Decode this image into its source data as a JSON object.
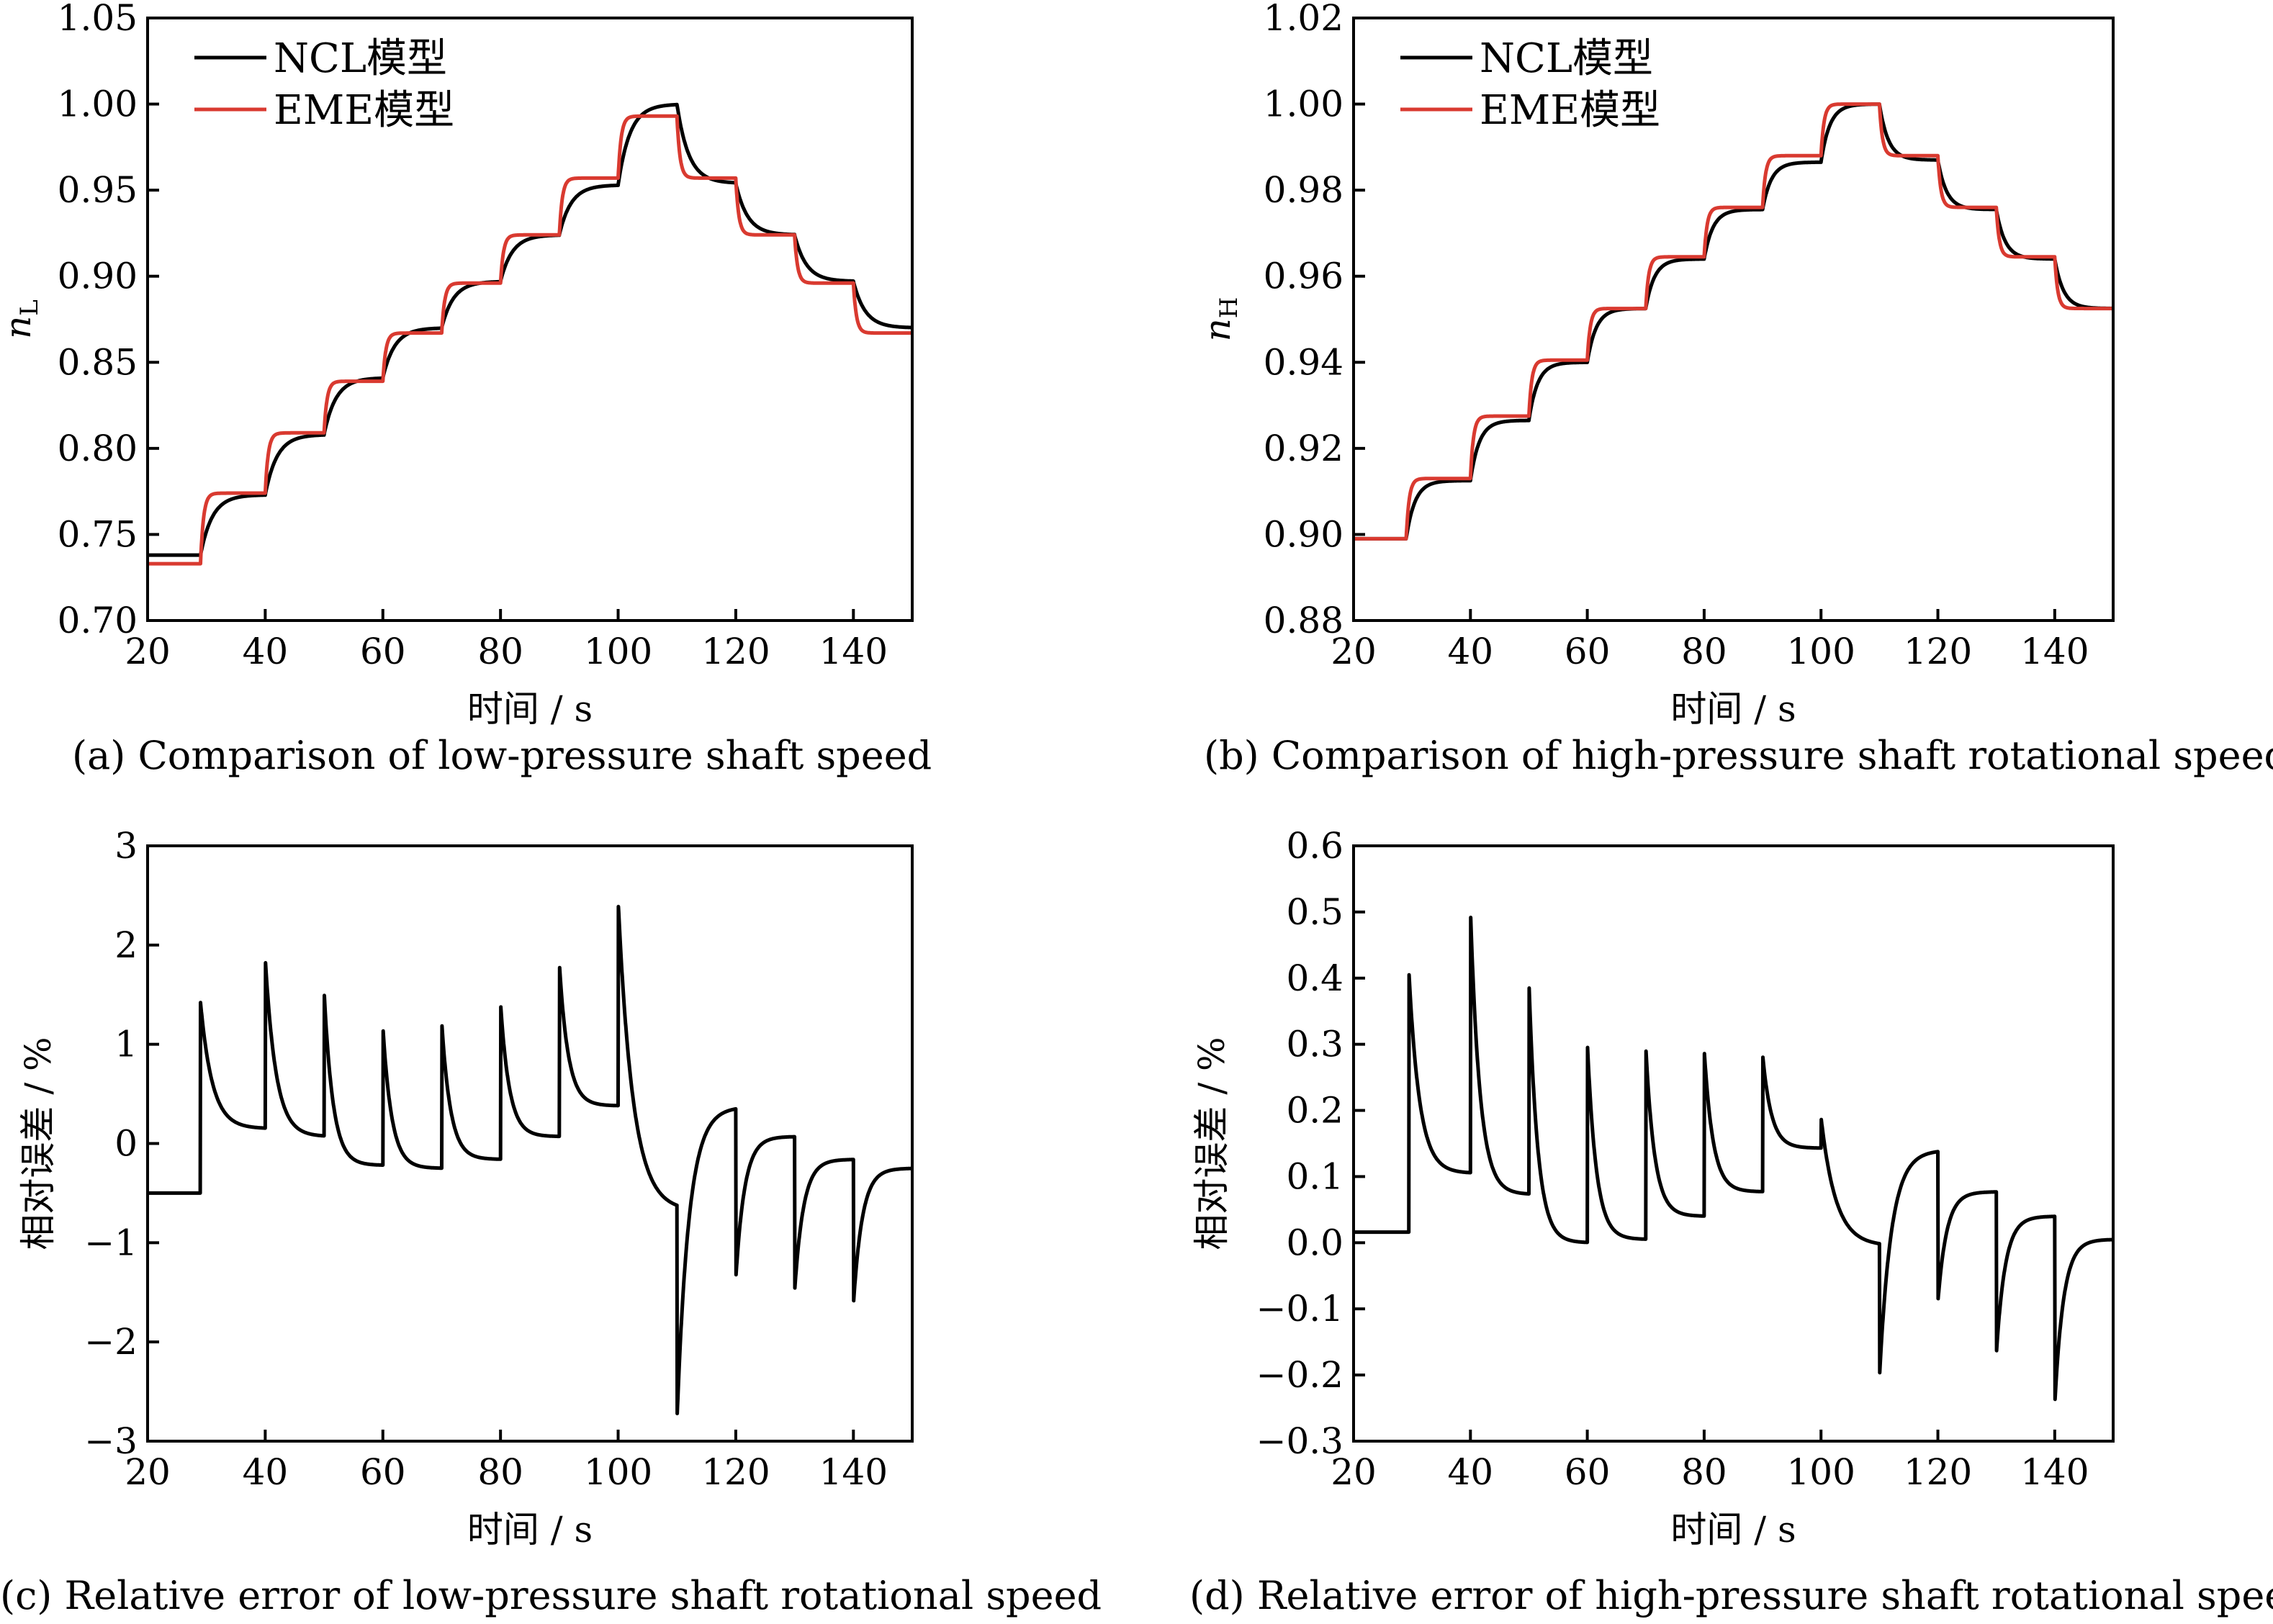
{
  "chart_data": [
    {
      "id": "a",
      "type": "line",
      "caption": "(a) Comparison of low-pressure shaft speed",
      "xlabel": "时间 / s",
      "ylabel_main": "n",
      "ylabel_sub": "L",
      "xlim": [
        20,
        150
      ],
      "ylim": [
        0.7,
        1.05
      ],
      "xticks": [
        20,
        40,
        60,
        80,
        100,
        120,
        140
      ],
      "xtick_labels": [
        "20",
        "40",
        "60",
        "80",
        "100",
        "120",
        "140"
      ],
      "yticks": [
        0.7,
        0.75,
        0.8,
        0.85,
        0.9,
        0.95,
        1.0,
        1.05
      ],
      "ytick_labels": [
        "0.70",
        "0.75",
        "0.80",
        "0.85",
        "0.90",
        "0.95",
        "1.00",
        "1.05"
      ],
      "legend_position": "top-left",
      "series": [
        {
          "name": "NCL模型",
          "color": "#000000",
          "step_times": [
            20,
            29,
            40,
            50,
            60,
            70,
            80,
            90,
            100,
            110,
            120,
            130,
            140
          ],
          "levels": [
            0.738,
            0.773,
            0.808,
            0.841,
            0.87,
            0.897,
            0.924,
            0.953,
            1.0,
            0.954,
            0.924,
            0.897,
            0.87
          ],
          "tau": 2.0
        },
        {
          "name": "EME模型",
          "color": "#d93a30",
          "step_times": [
            20,
            29,
            40,
            50,
            60,
            70,
            80,
            90,
            100,
            110,
            120,
            130,
            140
          ],
          "levels": [
            0.733,
            0.774,
            0.809,
            0.839,
            0.867,
            0.896,
            0.924,
            0.957,
            0.993,
            0.957,
            0.924,
            0.896,
            0.867
          ],
          "tau": 0.5
        }
      ]
    },
    {
      "id": "b",
      "type": "line",
      "caption": "(b) Comparison of high-pressure shaft rotational speed",
      "xlabel": "时间 / s",
      "ylabel_main": "n",
      "ylabel_sub": "H",
      "xlim": [
        20,
        150
      ],
      "ylim": [
        0.88,
        1.02
      ],
      "xticks": [
        20,
        40,
        60,
        80,
        100,
        120,
        140
      ],
      "xtick_labels": [
        "20",
        "40",
        "60",
        "80",
        "100",
        "120",
        "140"
      ],
      "yticks": [
        0.88,
        0.9,
        0.92,
        0.94,
        0.96,
        0.98,
        1.0,
        1.02
      ],
      "ytick_labels": [
        "0.88",
        "0.90",
        "0.92",
        "0.94",
        "0.96",
        "0.98",
        "1.00",
        "1.02"
      ],
      "legend_position": "top-center",
      "series": [
        {
          "name": "NCL模型",
          "color": "#000000",
          "step_times": [
            20,
            29,
            40,
            50,
            60,
            70,
            80,
            90,
            100,
            110,
            120,
            130,
            140
          ],
          "levels": [
            0.899,
            0.9125,
            0.9265,
            0.94,
            0.9525,
            0.964,
            0.9755,
            0.9865,
            1.0,
            0.987,
            0.9755,
            0.964,
            0.9525
          ],
          "tau": 1.5
        },
        {
          "name": "EME模型",
          "color": "#d93a30",
          "step_times": [
            20,
            29,
            40,
            50,
            60,
            70,
            80,
            90,
            100,
            110,
            120,
            130,
            140
          ],
          "levels": [
            0.899,
            0.913,
            0.9275,
            0.9405,
            0.9525,
            0.9645,
            0.976,
            0.988,
            1.0,
            0.988,
            0.976,
            0.9645,
            0.9525
          ],
          "tau": 0.5
        }
      ]
    },
    {
      "id": "c",
      "type": "line",
      "caption": "(c) Relative error of low-pressure shaft rotational speed",
      "xlabel": "时间 / s",
      "ylabel_main": "相对误差 / %",
      "ylabel_sub": "",
      "xlim": [
        20,
        150
      ],
      "ylim": [
        -3,
        3
      ],
      "xticks": [
        20,
        40,
        60,
        80,
        100,
        120,
        140
      ],
      "xtick_labels": [
        "20",
        "40",
        "60",
        "80",
        "100",
        "120",
        "140"
      ],
      "yticks": [
        -3,
        -2,
        -1,
        0,
        1,
        2,
        3
      ],
      "ytick_labels": [
        "−3",
        "−2",
        "−1",
        "0",
        "1",
        "2",
        "3"
      ],
      "legend_position": "none",
      "series": [
        {
          "name": "",
          "color": "#000000",
          "segments": [
            {
              "start": 20,
              "end": 29,
              "peak": -0.5,
              "base": -0.5,
              "tau": 1.5
            },
            {
              "start": 29,
              "end": 40,
              "peak": 1.42,
              "base": 0.15,
              "tau": 2.0
            },
            {
              "start": 40,
              "end": 50,
              "peak": 1.87,
              "base": 0.07,
              "tau": 1.8
            },
            {
              "start": 50,
              "end": 60,
              "peak": 1.55,
              "base": -0.22,
              "tau": 1.5
            },
            {
              "start": 60,
              "end": 70,
              "peak": 1.18,
              "base": -0.25,
              "tau": 1.5
            },
            {
              "start": 70,
              "end": 80,
              "peak": 1.23,
              "base": -0.16,
              "tau": 1.5
            },
            {
              "start": 80,
              "end": 90,
              "peak": 1.42,
              "base": 0.07,
              "tau": 1.5
            },
            {
              "start": 90,
              "end": 100,
              "peak": 1.82,
              "base": 0.38,
              "tau": 1.5
            },
            {
              "start": 100,
              "end": 110,
              "peak": 2.45,
              "base": -0.68,
              "tau": 2.5
            },
            {
              "start": 110,
              "end": 120,
              "peak": -2.8,
              "base": 0.37,
              "tau": 2.0
            },
            {
              "start": 120,
              "end": 130,
              "peak": -1.37,
              "base": 0.07,
              "tau": 1.5
            },
            {
              "start": 130,
              "end": 140,
              "peak": -1.5,
              "base": -0.16,
              "tau": 1.5
            },
            {
              "start": 140,
              "end": 150,
              "peak": -1.63,
              "base": -0.25,
              "tau": 1.5
            }
          ]
        }
      ]
    },
    {
      "id": "d",
      "type": "line",
      "caption": "(d) Relative error of high-pressure shaft rotational speed",
      "xlabel": "时间 / s",
      "ylabel_main": "相对误差 / %",
      "ylabel_sub": "",
      "xlim": [
        20,
        150
      ],
      "ylim": [
        -0.3,
        0.6
      ],
      "xticks": [
        20,
        40,
        60,
        80,
        100,
        120,
        140
      ],
      "xtick_labels": [
        "20",
        "40",
        "60",
        "80",
        "100",
        "120",
        "140"
      ],
      "yticks": [
        -0.3,
        -0.2,
        -0.1,
        0.0,
        0.1,
        0.2,
        0.3,
        0.4,
        0.5,
        0.6
      ],
      "ytick_labels": [
        "−0.3",
        "−0.2",
        "−0.1",
        "0.0",
        "0.1",
        "0.2",
        "0.3",
        "0.4",
        "0.5",
        "0.6"
      ],
      "legend_position": "none",
      "series": [
        {
          "name": "",
          "color": "#000000",
          "segments": [
            {
              "start": 20,
              "end": 29.5,
              "peak": 0.016,
              "base": 0.016,
              "tau": 1.5
            },
            {
              "start": 29.5,
              "end": 40,
              "peak": 0.405,
              "base": 0.105,
              "tau": 1.8
            },
            {
              "start": 40,
              "end": 50,
              "peak": 0.505,
              "base": 0.073,
              "tau": 1.6
            },
            {
              "start": 50,
              "end": 60,
              "peak": 0.398,
              "base": 0.0,
              "tau": 1.5
            },
            {
              "start": 60,
              "end": 70,
              "peak": 0.305,
              "base": 0.005,
              "tau": 1.5
            },
            {
              "start": 70,
              "end": 80,
              "peak": 0.298,
              "base": 0.04,
              "tau": 1.5
            },
            {
              "start": 80,
              "end": 90,
              "peak": 0.293,
              "base": 0.077,
              "tau": 1.5
            },
            {
              "start": 90,
              "end": 100,
              "peak": 0.285,
              "base": 0.143,
              "tau": 1.5
            },
            {
              "start": 100,
              "end": 110,
              "peak": 0.19,
              "base": -0.005,
              "tau": 2.5
            },
            {
              "start": 110,
              "end": 120,
              "peak": -0.205,
              "base": 0.14,
              "tau": 2.0
            },
            {
              "start": 120,
              "end": 130,
              "peak": -0.09,
              "base": 0.077,
              "tau": 1.5
            },
            {
              "start": 130,
              "end": 140,
              "peak": -0.17,
              "base": 0.04,
              "tau": 1.5
            },
            {
              "start": 140,
              "end": 150,
              "peak": -0.245,
              "base": 0.005,
              "tau": 1.5
            }
          ]
        }
      ]
    }
  ]
}
